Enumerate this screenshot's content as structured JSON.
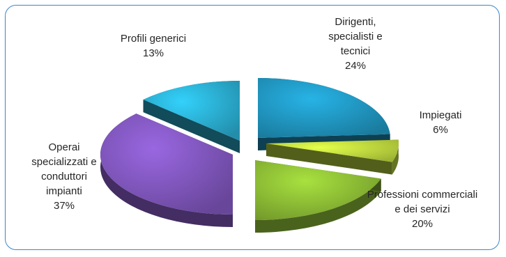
{
  "chart_data": {
    "type": "pie",
    "title": "",
    "slices": [
      {
        "label_lines": [
          "Dirigenti,",
          "specialisti e",
          "tecnici"
        ],
        "label": "Dirigenti, specialisti e tecnici",
        "value": 24,
        "value_label": "24%",
        "color": "#1f8fb8"
      },
      {
        "label_lines": [
          "Impiegati"
        ],
        "label": "Impiegati",
        "value": 6,
        "value_label": "6%",
        "color": "#b7d23c"
      },
      {
        "label_lines": [
          "Professioni commerciali",
          "e dei servizi"
        ],
        "label": "Professioni commerciali e dei servizi",
        "value": 20,
        "value_label": "20%",
        "color": "#86b432"
      },
      {
        "label_lines": [
          "Operai",
          "specializzati e",
          "conduttori",
          "impianti"
        ],
        "label": "Operai specializzati e conduttori impianti",
        "value": 37,
        "value_label": "37%",
        "color": "#7a52b4"
      },
      {
        "label_lines": [
          "Profili generici"
        ],
        "label": "Profili generici",
        "value": 13,
        "value_label": "13%",
        "color": "#29a7c9"
      }
    ],
    "legend": "none",
    "style": "3d-exploded"
  }
}
